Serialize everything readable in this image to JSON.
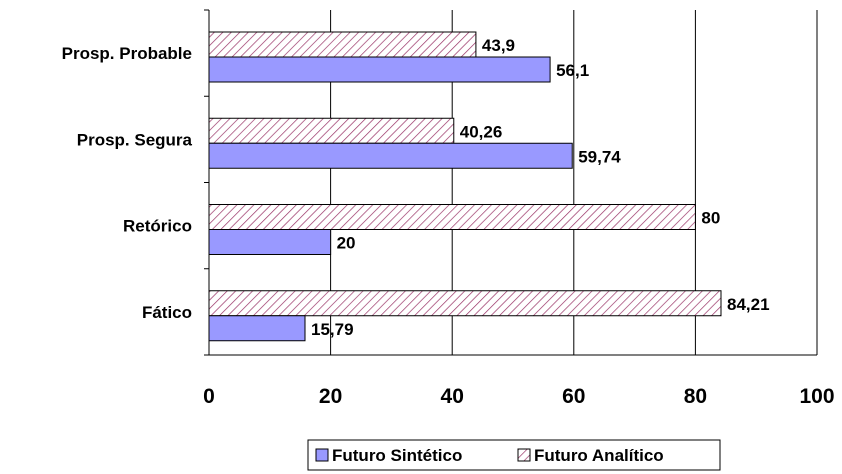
{
  "chart_data": {
    "type": "bar",
    "orientation": "horizontal",
    "categories": [
      "Prosp. Probable",
      "Prosp. Segura",
      "Retórico",
      "Fático"
    ],
    "series": [
      {
        "name": "Futuro Sintético",
        "values": [
          56.1,
          59.74,
          20,
          15.79
        ],
        "data_labels": [
          "56,1",
          "59,74",
          "20",
          "15,79"
        ],
        "color": "#9999ff",
        "fill": "solid"
      },
      {
        "name": "Futuro Analítico",
        "values": [
          43.9,
          40.26,
          80,
          84.21
        ],
        "data_labels": [
          "43,9",
          "40,26",
          "80",
          "84,21"
        ],
        "color": "#993366",
        "fill": "diagonal-hatch"
      }
    ],
    "xlim": [
      0,
      100
    ],
    "xticks": [
      0,
      20,
      40,
      60,
      80,
      100
    ],
    "xtick_labels": [
      "0",
      "20",
      "40",
      "60",
      "80",
      "100"
    ],
    "grid": "vertical",
    "legend_position": "bottom"
  }
}
